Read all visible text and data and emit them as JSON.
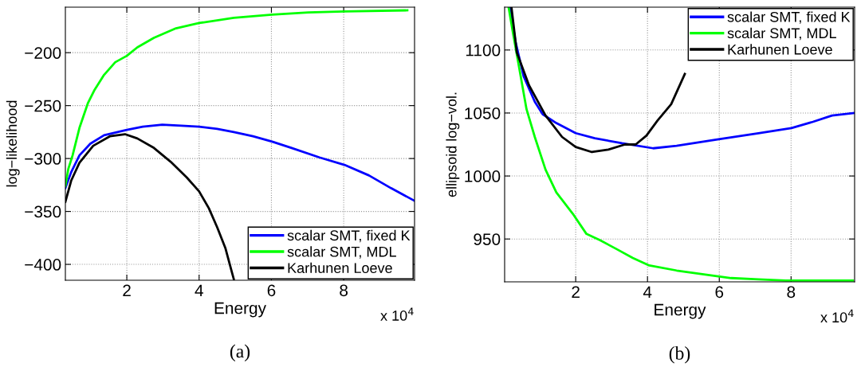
{
  "chart_data": [
    {
      "type": "line",
      "xlabel": "Energy",
      "ylabel": "log−likelihood",
      "xlim": [
        0.3,
        9.96
      ],
      "ylim": [
        -415,
        -157
      ],
      "xticks": [
        2,
        4,
        6,
        8
      ],
      "yticks": [
        -400,
        -350,
        -300,
        -250,
        -200
      ],
      "grid": true,
      "legend": "bottom right",
      "annotations": [
        "x 10$^{4}$",
        "(a)"
      ],
      "series": [
        {
          "name": "scalar SMT, fixed K",
          "color": "#0000ff",
          "x": [
            0.3,
            0.46,
            0.69,
            0.99,
            1.37,
            2,
            2.44,
            2.98,
            3.51,
            4,
            4.5,
            4.96,
            5.49,
            6.02,
            6.56,
            7.33,
            8.02,
            8.7,
            9.31,
            9.96
          ],
          "values": [
            -328,
            -313,
            -297,
            -286,
            -278,
            -273,
            -270,
            -268,
            -269,
            -270,
            -272,
            -275,
            -279,
            -284,
            -290,
            -299,
            -306,
            -316,
            -328,
            -340
          ]
        },
        {
          "name": "scalar SMT, MDL",
          "color": "#00ff00",
          "x": [
            0.3,
            0.38,
            0.5,
            0.69,
            0.92,
            1.11,
            1.37,
            1.68,
            2,
            2.29,
            2.75,
            3.36,
            4,
            4.96,
            6.02,
            7.02,
            8.02,
            9.76
          ],
          "values": [
            -326,
            -310,
            -297,
            -271,
            -248,
            -235,
            -221,
            -209,
            -203,
            -195,
            -186,
            -177,
            -172,
            -167,
            -164,
            -162,
            -161,
            -160
          ]
        },
        {
          "name": "Karhunen Loeve",
          "color": "#000000",
          "x": [
            0.3,
            0.46,
            0.69,
            1.07,
            1.53,
            1.95,
            2.29,
            2.75,
            3.21,
            3.66,
            4,
            4.27,
            4.5,
            4.73,
            4.92,
            4.96
          ],
          "values": [
            -341,
            -321,
            -304,
            -288,
            -279,
            -277,
            -281,
            -290,
            -303,
            -318,
            -331,
            -347,
            -365,
            -385,
            -409,
            -414
          ]
        }
      ]
    },
    {
      "type": "line",
      "xlabel": "Energy",
      "ylabel": "ellipsoid log−vol.",
      "xlim": [
        0.02,
        9.77
      ],
      "ylim": [
        916,
        1134
      ],
      "xticks": [
        2,
        4,
        6,
        8
      ],
      "yticks": [
        950,
        1000,
        1050,
        1100
      ],
      "grid": true,
      "legend": "top right",
      "annotations": [
        "x 10$^{4}$",
        "(b)"
      ],
      "series": [
        {
          "name": "scalar SMT, fixed K",
          "color": "#0000ff",
          "x": [
            0.17,
            0.32,
            0.55,
            0.86,
            1.08,
            1.46,
            2,
            2.53,
            3.29,
            4.16,
            4.81,
            5.95,
            7.09,
            8.01,
            8.61,
            9.14,
            9.75
          ],
          "values": [
            1134,
            1107,
            1079,
            1059,
            1049,
            1042,
            1034,
            1030,
            1026,
            1022,
            1024,
            1029,
            1034,
            1038,
            1043,
            1048,
            1050
          ]
        },
        {
          "name": "scalar SMT, MDL",
          "color": "#00ff00",
          "x": [
            0.13,
            0.25,
            0.4,
            0.63,
            0.86,
            1.16,
            1.46,
            1.92,
            2.3,
            2.68,
            3.14,
            3.59,
            4.05,
            4.81,
            5.57,
            6.33,
            7.09,
            7.85,
            9.72
          ],
          "values": [
            1134,
            1114,
            1090,
            1053,
            1031,
            1005,
            987,
            970,
            954,
            949,
            942,
            935,
            929,
            925,
            922,
            919,
            918,
            917,
            917
          ]
        },
        {
          "name": "Karhunen Loeve",
          "color": "#000000",
          "x": [
            0.21,
            0.36,
            0.7,
            1.16,
            1.62,
            2,
            2.45,
            2.91,
            3.37,
            3.67,
            3.97,
            4.28,
            4.66,
            5.04
          ],
          "values": [
            1134,
            1098,
            1072,
            1048,
            1031,
            1023,
            1019,
            1021,
            1025,
            1025,
            1032,
            1044,
            1057,
            1081
          ]
        }
      ]
    }
  ]
}
